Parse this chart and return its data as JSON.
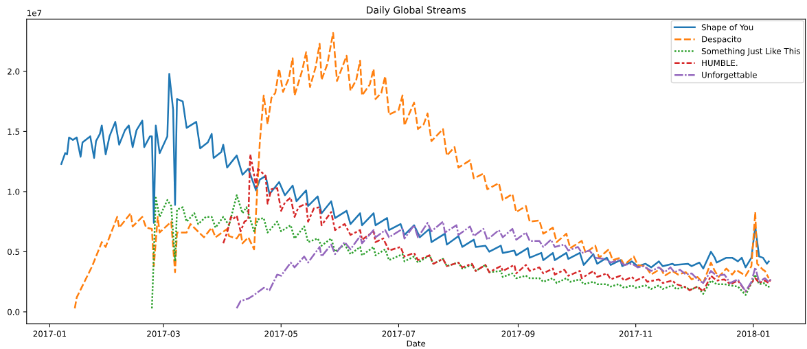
{
  "chart_data": {
    "type": "line",
    "title": "Daily Global Streams",
    "xlabel": "Date",
    "annotations": [
      "1e7"
    ],
    "xlim": [
      "2016-12-20",
      "2018-01-28"
    ],
    "xticks": [
      "2017-01",
      "2017-03",
      "2017-05",
      "2017-07",
      "2017-09",
      "2017-11",
      "2018-01"
    ],
    "ylim": [
      -0.1,
      2.434
    ],
    "yticks": [
      {
        "value": 0,
        "label": "0.0"
      },
      0.5,
      {
        "value": 1,
        "label": "1.0"
      },
      1.5,
      {
        "value": 2,
        "label": "2.0"
      }
    ],
    "grid": false,
    "legend": "top right",
    "series": [
      {
        "name": "Shape of You",
        "color": "#1f77b4",
        "line_style": "solid",
        "x": [
          "2017-01-07",
          "2017-01-09",
          "2017-01-10",
          "2017-01-11",
          "2017-01-13",
          "2017-01-15",
          "2017-01-17",
          "2017-01-18",
          "2017-01-22",
          "2017-01-24",
          "2017-01-25",
          "2017-01-27",
          "2017-01-28",
          "2017-01-30",
          "2017-02-01",
          "2017-02-04",
          "2017-02-06",
          "2017-02-09",
          "2017-02-11",
          "2017-02-13",
          "2017-02-15",
          "2017-02-18",
          "2017-02-19",
          "2017-02-22",
          "2017-02-23",
          "2017-02-24",
          "2017-02-25",
          "2017-02-27",
          "2017-03-03",
          "2017-03-04",
          "2017-03-06",
          "2017-03-07",
          "2017-03-08",
          "2017-03-11",
          "2017-03-13",
          "2017-03-18",
          "2017-03-20",
          "2017-03-24",
          "2017-03-26",
          "2017-03-27",
          "2017-03-31",
          "2017-04-01",
          "2017-04-03",
          "2017-04-08",
          "2017-04-11",
          "2017-04-14",
          "2017-04-18",
          "2017-04-20",
          "2017-04-23",
          "2017-04-25",
          "2017-04-30",
          "2017-05-03",
          "2017-05-07",
          "2017-05-09",
          "2017-05-14",
          "2017-05-15",
          "2017-05-20",
          "2017-05-22",
          "2017-05-27",
          "2017-05-29",
          "2017-06-04",
          "2017-06-06",
          "2017-06-11",
          "2017-06-12",
          "2017-06-18",
          "2017-06-19",
          "2017-06-25",
          "2017-06-26",
          "2017-07-02",
          "2017-07-04",
          "2017-07-09",
          "2017-07-12",
          "2017-07-17",
          "2017-07-18",
          "2017-07-25",
          "2017-07-26",
          "2017-08-01",
          "2017-08-03",
          "2017-08-09",
          "2017-08-10",
          "2017-08-15",
          "2017-08-17",
          "2017-08-23",
          "2017-08-24",
          "2017-08-30",
          "2017-08-31",
          "2017-09-06",
          "2017-09-07",
          "2017-09-13",
          "2017-09-14",
          "2017-09-19",
          "2017-09-20",
          "2017-09-26",
          "2017-09-27",
          "2017-10-03",
          "2017-10-05",
          "2017-10-10",
          "2017-10-12",
          "2017-10-17",
          "2017-10-19",
          "2017-10-24",
          "2017-10-25",
          "2017-10-29",
          "2017-10-30",
          "2017-11-02",
          "2017-11-06",
          "2017-11-09",
          "2017-11-13",
          "2017-11-15",
          "2017-11-20",
          "2017-11-21",
          "2017-11-28",
          "2017-11-30",
          "2017-12-04",
          "2017-12-06",
          "2017-12-10",
          "2017-12-12",
          "2017-12-13",
          "2017-12-18",
          "2017-12-21",
          "2017-12-24",
          "2017-12-26",
          "2017-12-28",
          "2017-12-31",
          "2018-01-02",
          "2018-01-04",
          "2018-01-06",
          "2018-01-08",
          "2018-01-09"
        ],
        "values": [
          1.23,
          1.32,
          1.31,
          1.45,
          1.43,
          1.45,
          1.29,
          1.41,
          1.46,
          1.28,
          1.42,
          1.48,
          1.55,
          1.31,
          1.46,
          1.58,
          1.39,
          1.51,
          1.55,
          1.37,
          1.51,
          1.59,
          1.37,
          1.46,
          1.46,
          0.74,
          1.55,
          1.32,
          1.46,
          1.98,
          1.68,
          0.89,
          1.77,
          1.75,
          1.53,
          1.58,
          1.36,
          1.41,
          1.48,
          1.28,
          1.33,
          1.39,
          1.2,
          1.3,
          1.14,
          1.19,
          1.01,
          1.1,
          1.13,
          0.98,
          1.08,
          0.97,
          1.05,
          0.92,
          1.01,
          0.88,
          0.96,
          0.82,
          0.92,
          0.78,
          0.84,
          0.73,
          0.82,
          0.72,
          0.82,
          0.72,
          0.78,
          0.68,
          0.73,
          0.64,
          0.72,
          0.62,
          0.69,
          0.58,
          0.65,
          0.56,
          0.63,
          0.54,
          0.6,
          0.54,
          0.55,
          0.5,
          0.55,
          0.49,
          0.51,
          0.47,
          0.53,
          0.45,
          0.49,
          0.43,
          0.49,
          0.43,
          0.49,
          0.44,
          0.49,
          0.39,
          0.48,
          0.4,
          0.45,
          0.39,
          0.43,
          0.38,
          0.41,
          0.42,
          0.38,
          0.4,
          0.37,
          0.42,
          0.38,
          0.4,
          0.39,
          0.4,
          0.38,
          0.41,
          0.36,
          0.5,
          0.45,
          0.41,
          0.45,
          0.45,
          0.42,
          0.45,
          0.37,
          0.45,
          0.71,
          0.46,
          0.45,
          0.4,
          0.42
        ]
      },
      {
        "name": "Despacito",
        "color": "#ff7f0e",
        "line_style": "dashed",
        "x": [
          "2017-01-14",
          "2017-01-15",
          "2017-01-23",
          "2017-01-28",
          "2017-01-30",
          "2017-02-05",
          "2017-02-06",
          "2017-02-12",
          "2017-02-13",
          "2017-02-18",
          "2017-02-20",
          "2017-02-23",
          "2017-02-24",
          "2017-02-26",
          "2017-02-27",
          "2017-03-05",
          "2017-03-07",
          "2017-03-08",
          "2017-03-13",
          "2017-03-15",
          "2017-03-22",
          "2017-03-26",
          "2017-03-28",
          "2017-04-03",
          "2017-04-04",
          "2017-04-08",
          "2017-04-10",
          "2017-04-11",
          "2017-04-14",
          "2017-04-17",
          "2017-04-20",
          "2017-04-22",
          "2017-04-24",
          "2017-04-26",
          "2017-04-28",
          "2017-04-30",
          "2017-05-02",
          "2017-05-05",
          "2017-05-07",
          "2017-05-08",
          "2017-05-12",
          "2017-05-14",
          "2017-05-16",
          "2017-05-19",
          "2017-05-21",
          "2017-05-22",
          "2017-05-25",
          "2017-05-28",
          "2017-05-30",
          "2017-06-04",
          "2017-06-06",
          "2017-06-09",
          "2017-06-11",
          "2017-06-12",
          "2017-06-16",
          "2017-06-18",
          "2017-06-19",
          "2017-06-22",
          "2017-06-24",
          "2017-06-26",
          "2017-07-01",
          "2017-07-03",
          "2017-07-04",
          "2017-07-06",
          "2017-07-09",
          "2017-07-11",
          "2017-07-14",
          "2017-07-16",
          "2017-07-18",
          "2017-07-24",
          "2017-07-26",
          "2017-07-30",
          "2017-08-01",
          "2017-08-07",
          "2017-08-09",
          "2017-08-14",
          "2017-08-16",
          "2017-08-22",
          "2017-08-24",
          "2017-08-29",
          "2017-08-31",
          "2017-09-05",
          "2017-09-07",
          "2017-09-12",
          "2017-09-14",
          "2017-09-19",
          "2017-09-21",
          "2017-09-26",
          "2017-09-28",
          "2017-10-04",
          "2017-10-06",
          "2017-10-11",
          "2017-10-13",
          "2017-10-18",
          "2017-10-20",
          "2017-10-24",
          "2017-10-26",
          "2017-10-31",
          "2017-11-02",
          "2017-11-06",
          "2017-11-09",
          "2017-11-14",
          "2017-11-16",
          "2017-11-20",
          "2017-11-23",
          "2017-11-27",
          "2017-11-30",
          "2017-12-03",
          "2017-12-06",
          "2017-12-10",
          "2017-12-12",
          "2017-12-14",
          "2017-12-18",
          "2017-12-21",
          "2017-12-23",
          "2017-12-28",
          "2017-12-31",
          "2018-01-02",
          "2018-01-03",
          "2018-01-06",
          "2018-01-07",
          "2018-01-09"
        ],
        "values": [
          0.03,
          0.12,
          0.38,
          0.58,
          0.54,
          0.79,
          0.7,
          0.82,
          0.71,
          0.79,
          0.7,
          0.69,
          0.38,
          0.79,
          0.66,
          0.75,
          0.33,
          0.66,
          0.66,
          0.73,
          0.62,
          0.7,
          0.62,
          0.69,
          0.63,
          0.61,
          0.66,
          0.57,
          0.62,
          0.52,
          1.42,
          1.8,
          1.56,
          1.78,
          1.82,
          2.02,
          1.83,
          1.94,
          2.11,
          1.8,
          2.01,
          2.16,
          1.87,
          2.04,
          2.23,
          1.93,
          2.06,
          2.32,
          1.92,
          2.13,
          1.84,
          1.93,
          2.09,
          1.8,
          1.89,
          2.02,
          1.77,
          1.82,
          1.96,
          1.64,
          1.68,
          1.8,
          1.55,
          1.63,
          1.74,
          1.52,
          1.56,
          1.65,
          1.42,
          1.52,
          1.3,
          1.37,
          1.2,
          1.26,
          1.11,
          1.15,
          1.02,
          1.07,
          0.93,
          0.98,
          0.83,
          0.88,
          0.75,
          0.76,
          0.65,
          0.7,
          0.58,
          0.65,
          0.53,
          0.59,
          0.49,
          0.55,
          0.45,
          0.52,
          0.43,
          0.45,
          0.39,
          0.46,
          0.39,
          0.38,
          0.31,
          0.36,
          0.3,
          0.34,
          0.31,
          0.33,
          0.27,
          0.29,
          0.24,
          0.41,
          0.34,
          0.29,
          0.36,
          0.31,
          0.35,
          0.3,
          0.38,
          0.83,
          0.4,
          0.35,
          0.34,
          0.28
        ]
      },
      {
        "name": "Something Just Like This",
        "color": "#2ca02c",
        "line_style": "dotted",
        "x": [
          "2017-02-23",
          "2017-02-25",
          "2017-02-27",
          "2017-03-03",
          "2017-03-05",
          "2017-03-07",
          "2017-03-08",
          "2017-03-11",
          "2017-03-13",
          "2017-03-17",
          "2017-03-19",
          "2017-03-23",
          "2017-03-26",
          "2017-03-28",
          "2017-04-01",
          "2017-04-04",
          "2017-04-08",
          "2017-04-11",
          "2017-04-13",
          "2017-04-17",
          "2017-04-19",
          "2017-04-22",
          "2017-04-24",
          "2017-04-29",
          "2017-05-01",
          "2017-05-06",
          "2017-05-08",
          "2017-05-13",
          "2017-05-15",
          "2017-05-20",
          "2017-05-22",
          "2017-05-27",
          "2017-05-29",
          "2017-06-03",
          "2017-06-06",
          "2017-06-11",
          "2017-06-12",
          "2017-06-18",
          "2017-06-19",
          "2017-06-24",
          "2017-06-26",
          "2017-07-03",
          "2017-07-04",
          "2017-07-09",
          "2017-07-11",
          "2017-07-17",
          "2017-07-19",
          "2017-07-24",
          "2017-07-26",
          "2017-08-01",
          "2017-08-03",
          "2017-08-08",
          "2017-08-10",
          "2017-08-15",
          "2017-08-17",
          "2017-08-23",
          "2017-08-24",
          "2017-08-29",
          "2017-08-31",
          "2017-09-05",
          "2017-09-07",
          "2017-09-12",
          "2017-09-14",
          "2017-09-19",
          "2017-09-21",
          "2017-09-26",
          "2017-09-28",
          "2017-10-03",
          "2017-10-05",
          "2017-10-10",
          "2017-10-12",
          "2017-10-17",
          "2017-10-19",
          "2017-10-23",
          "2017-10-26",
          "2017-10-30",
          "2017-11-01",
          "2017-11-06",
          "2017-11-09",
          "2017-11-13",
          "2017-11-15",
          "2017-11-20",
          "2017-11-22",
          "2017-11-27",
          "2017-11-29",
          "2017-12-03",
          "2017-12-06",
          "2017-12-10",
          "2017-12-13",
          "2017-12-17",
          "2017-12-20",
          "2017-12-24",
          "2017-12-28",
          "2017-12-31",
          "2018-01-02",
          "2018-01-04",
          "2018-01-07",
          "2018-01-08",
          "2018-01-10"
        ],
        "values": [
          0.03,
          0.95,
          0.79,
          0.93,
          0.88,
          0.42,
          0.85,
          0.87,
          0.75,
          0.82,
          0.73,
          0.79,
          0.79,
          0.7,
          0.79,
          0.72,
          0.97,
          0.82,
          0.87,
          0.67,
          0.77,
          0.78,
          0.66,
          0.75,
          0.67,
          0.72,
          0.61,
          0.71,
          0.58,
          0.61,
          0.55,
          0.61,
          0.5,
          0.56,
          0.48,
          0.54,
          0.47,
          0.54,
          0.47,
          0.52,
          0.43,
          0.48,
          0.42,
          0.46,
          0.41,
          0.47,
          0.4,
          0.44,
          0.38,
          0.41,
          0.36,
          0.39,
          0.34,
          0.39,
          0.33,
          0.34,
          0.29,
          0.32,
          0.28,
          0.3,
          0.28,
          0.28,
          0.25,
          0.28,
          0.24,
          0.28,
          0.25,
          0.27,
          0.23,
          0.25,
          0.23,
          0.23,
          0.21,
          0.23,
          0.2,
          0.22,
          0.2,
          0.22,
          0.19,
          0.22,
          0.19,
          0.22,
          0.19,
          0.21,
          0.18,
          0.21,
          0.15,
          0.26,
          0.23,
          0.23,
          0.22,
          0.21,
          0.14,
          0.24,
          0.31,
          0.23,
          0.24,
          0.21,
          0.21
        ]
      },
      {
        "name": "HUMBLE.",
        "color": "#d62728",
        "line_style": "dashdot",
        "x": [
          "2017-04-01",
          "2017-04-03",
          "2017-04-05",
          "2017-04-06",
          "2017-04-08",
          "2017-04-10",
          "2017-04-12",
          "2017-04-14",
          "2017-04-15",
          "2017-04-17",
          "2017-04-18",
          "2017-04-19",
          "2017-04-23",
          "2017-04-24",
          "2017-04-26",
          "2017-04-29",
          "2017-05-01",
          "2017-05-03",
          "2017-05-06",
          "2017-05-08",
          "2017-05-10",
          "2017-05-14",
          "2017-05-15",
          "2017-05-18",
          "2017-05-21",
          "2017-05-22",
          "2017-05-27",
          "2017-05-29",
          "2017-06-03",
          "2017-06-06",
          "2017-06-11",
          "2017-06-12",
          "2017-06-18",
          "2017-06-19",
          "2017-06-23",
          "2017-06-26",
          "2017-07-02",
          "2017-07-04",
          "2017-07-09",
          "2017-07-11",
          "2017-07-17",
          "2017-07-19",
          "2017-07-24",
          "2017-07-26",
          "2017-08-01",
          "2017-08-03",
          "2017-08-08",
          "2017-08-10",
          "2017-08-15",
          "2017-08-17",
          "2017-08-23",
          "2017-08-24",
          "2017-08-30",
          "2017-08-31",
          "2017-09-05",
          "2017-09-07",
          "2017-09-12",
          "2017-09-14",
          "2017-09-19",
          "2017-09-20",
          "2017-09-25",
          "2017-09-27",
          "2017-10-03",
          "2017-10-04",
          "2017-10-10",
          "2017-10-12",
          "2017-10-17",
          "2017-10-19",
          "2017-10-24",
          "2017-10-26",
          "2017-10-30",
          "2017-11-01",
          "2017-11-05",
          "2017-11-07",
          "2017-11-13",
          "2017-11-15",
          "2017-11-20",
          "2017-11-22",
          "2017-11-26",
          "2017-11-29",
          "2017-12-03",
          "2017-12-06",
          "2017-12-10",
          "2017-12-13",
          "2017-12-17",
          "2017-12-20",
          "2017-12-24",
          "2017-12-28",
          "2017-12-31",
          "2018-01-02",
          "2018-01-04",
          "2018-01-07",
          "2018-01-09",
          "2018-01-10"
        ],
        "values": [
          0.57,
          0.66,
          0.79,
          0.77,
          0.8,
          0.67,
          0.75,
          0.77,
          1.31,
          1.14,
          1.04,
          1.19,
          1.13,
          0.9,
          1.02,
          1.03,
          0.84,
          0.91,
          0.95,
          0.79,
          0.87,
          0.9,
          0.75,
          0.86,
          0.87,
          0.72,
          0.83,
          0.68,
          0.73,
          0.64,
          0.68,
          0.6,
          0.67,
          0.58,
          0.61,
          0.51,
          0.54,
          0.46,
          0.49,
          0.43,
          0.47,
          0.4,
          0.44,
          0.38,
          0.41,
          0.37,
          0.4,
          0.34,
          0.39,
          0.33,
          0.38,
          0.34,
          0.39,
          0.32,
          0.39,
          0.34,
          0.37,
          0.32,
          0.36,
          0.31,
          0.35,
          0.3,
          0.34,
          0.28,
          0.34,
          0.29,
          0.32,
          0.27,
          0.3,
          0.26,
          0.29,
          0.26,
          0.29,
          0.25,
          0.27,
          0.24,
          0.26,
          0.23,
          0.21,
          0.18,
          0.21,
          0.17,
          0.3,
          0.26,
          0.27,
          0.23,
          0.26,
          0.17,
          0.24,
          0.28,
          0.24,
          0.26,
          0.24,
          0.27
        ]
      },
      {
        "name": "Unforgettable",
        "color": "#9467bd",
        "line_style": "longdashdot",
        "x": [
          "2017-04-08",
          "2017-04-10",
          "2017-04-14",
          "2017-04-17",
          "2017-04-22",
          "2017-04-25",
          "2017-04-29",
          "2017-05-01",
          "2017-05-06",
          "2017-05-08",
          "2017-05-13",
          "2017-05-15",
          "2017-05-21",
          "2017-05-22",
          "2017-05-27",
          "2017-05-29",
          "2017-06-03",
          "2017-06-06",
          "2017-06-11",
          "2017-06-12",
          "2017-06-18",
          "2017-06-19",
          "2017-06-24",
          "2017-06-26",
          "2017-07-03",
          "2017-07-04",
          "2017-07-09",
          "2017-07-11",
          "2017-07-16",
          "2017-07-18",
          "2017-07-24",
          "2017-07-25",
          "2017-07-31",
          "2017-08-01",
          "2017-08-07",
          "2017-08-09",
          "2017-08-14",
          "2017-08-16",
          "2017-08-22",
          "2017-08-24",
          "2017-08-29",
          "2017-08-31",
          "2017-09-05",
          "2017-09-07",
          "2017-09-12",
          "2017-09-14",
          "2017-09-18",
          "2017-09-20",
          "2017-09-25",
          "2017-09-27",
          "2017-10-02",
          "2017-10-04",
          "2017-10-08",
          "2017-10-11",
          "2017-10-16",
          "2017-10-19",
          "2017-10-23",
          "2017-10-26",
          "2017-10-30",
          "2017-11-02",
          "2017-11-05",
          "2017-11-09",
          "2017-11-13",
          "2017-11-16",
          "2017-11-19",
          "2017-11-21",
          "2017-11-24",
          "2017-11-27",
          "2017-11-30",
          "2017-12-03",
          "2017-12-06",
          "2017-12-10",
          "2017-12-13",
          "2017-12-17",
          "2017-12-20",
          "2017-12-24",
          "2017-12-28",
          "2017-12-31",
          "2018-01-02",
          "2018-01-04",
          "2018-01-07",
          "2018-01-09",
          "2018-01-10"
        ],
        "values": [
          0.03,
          0.09,
          0.11,
          0.14,
          0.2,
          0.18,
          0.31,
          0.3,
          0.41,
          0.37,
          0.46,
          0.41,
          0.54,
          0.46,
          0.56,
          0.48,
          0.58,
          0.52,
          0.63,
          0.57,
          0.68,
          0.62,
          0.68,
          0.62,
          0.69,
          0.61,
          0.72,
          0.62,
          0.74,
          0.67,
          0.75,
          0.66,
          0.72,
          0.64,
          0.71,
          0.63,
          0.69,
          0.6,
          0.68,
          0.62,
          0.69,
          0.6,
          0.66,
          0.59,
          0.59,
          0.54,
          0.6,
          0.54,
          0.56,
          0.51,
          0.54,
          0.49,
          0.51,
          0.45,
          0.44,
          0.41,
          0.43,
          0.39,
          0.4,
          0.37,
          0.38,
          0.34,
          0.37,
          0.33,
          0.37,
          0.33,
          0.35,
          0.31,
          0.32,
          0.27,
          0.24,
          0.34,
          0.3,
          0.31,
          0.24,
          0.27,
          0.17,
          0.25,
          0.37,
          0.25,
          0.28,
          0.25,
          0.27
        ]
      }
    ]
  }
}
